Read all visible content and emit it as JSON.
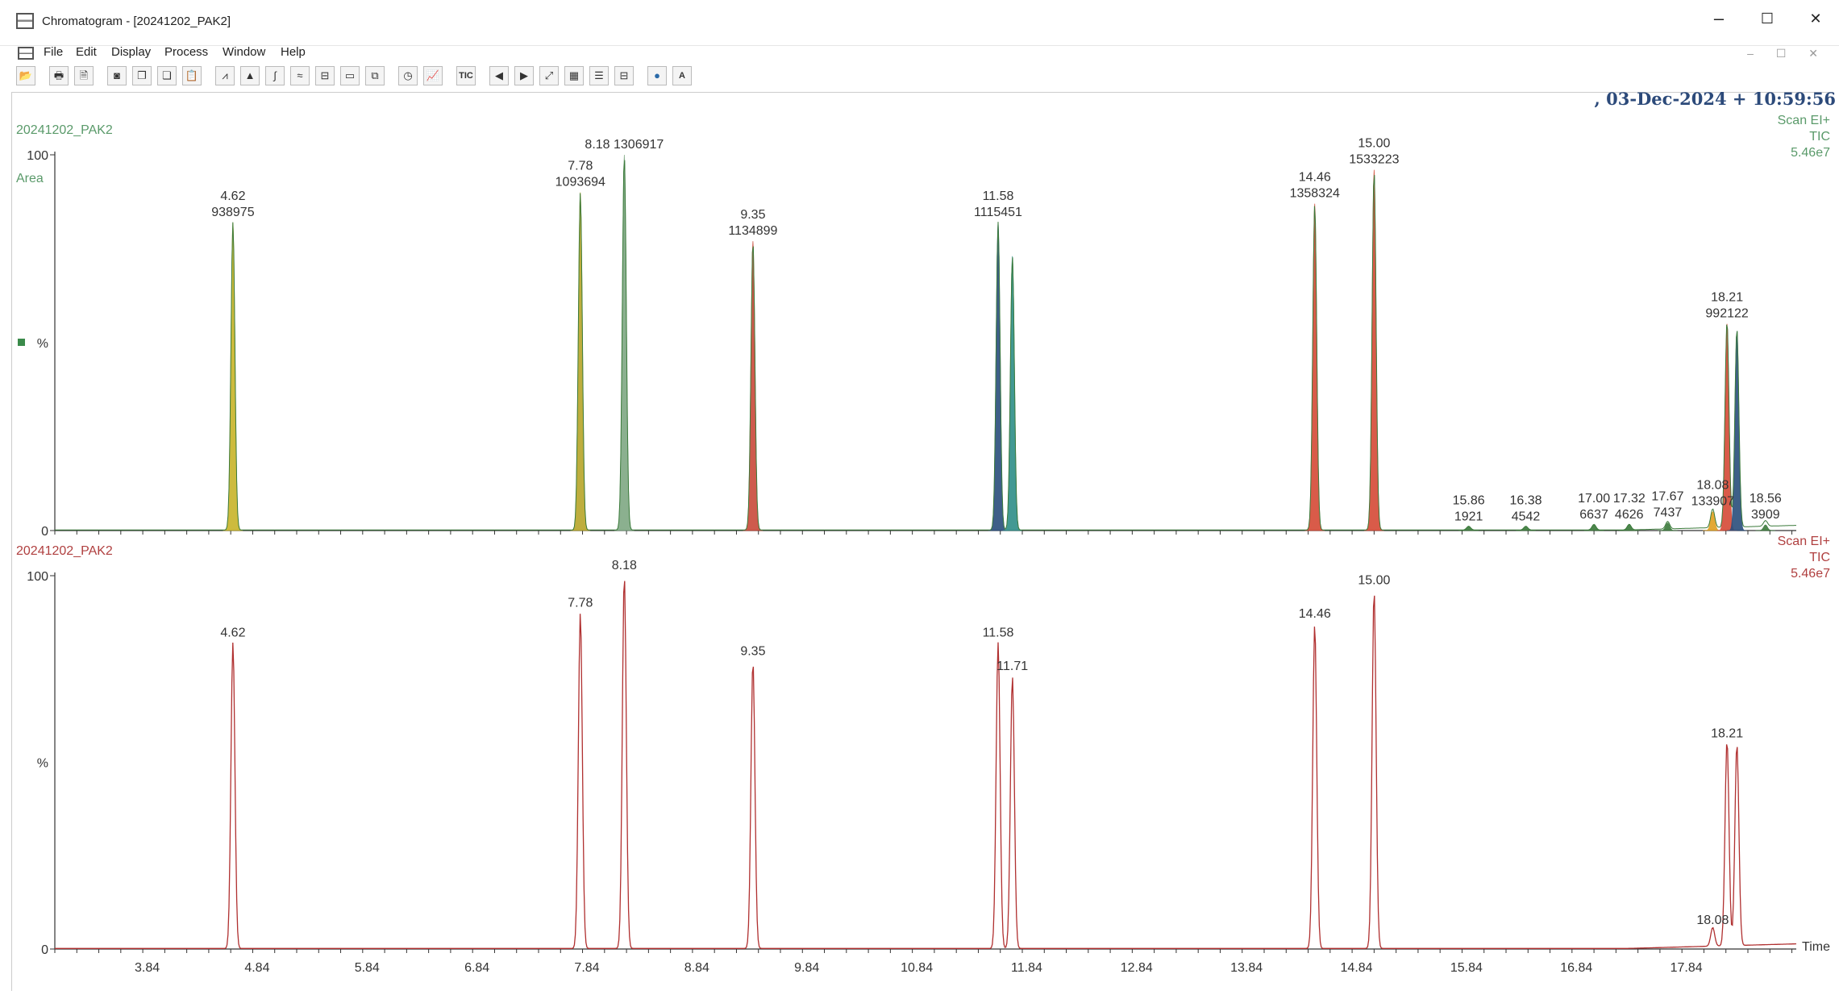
{
  "window": {
    "title": "Chromatogram - [20241202_PAK2]",
    "minimize": "–",
    "maximize": "☐",
    "close": "✕"
  },
  "menu": [
    "File",
    "Edit",
    "Display",
    "Process",
    "Window",
    "Help"
  ],
  "toolbar": {
    "buttons": [
      "open-icon",
      "print-icon",
      "print-preview-icon",
      "camera-icon",
      "copy-icon",
      "copy-list-icon",
      "paste-icon",
      "spectrum-icon",
      "peak-icon",
      "integrate-icon",
      "smooth-icon",
      "subtract-icon",
      "window-icon",
      "overlay-icon",
      "timer-icon",
      "chart-icon",
      "TIC",
      "left-arrow-icon",
      "right-arrow-icon",
      "zoom-fit-icon",
      "grid-icon",
      "stack-icon",
      "split-icon",
      "globe-icon",
      "A"
    ]
  },
  "header": {
    "datetime": "03-Dec-2024 + 10:59:56"
  },
  "chart_data": [
    {
      "type": "line",
      "name": "upper-trace-area",
      "sample": "20241202_PAK2",
      "mode": "Area",
      "info": [
        "Scan EI+",
        "TIC",
        "5.46e7"
      ],
      "ylabel": "%",
      "ylim": [
        0,
        100
      ],
      "xlim": [
        3.0,
        18.84
      ],
      "yticks": [
        "100",
        "%",
        "0"
      ],
      "peaks": [
        {
          "rt": 4.62,
          "height": 82,
          "color": "#c8b42a",
          "label": [
            "4.62",
            "938975"
          ]
        },
        {
          "rt": 7.78,
          "height": 90,
          "color": "#b8a62a",
          "label": [
            "7.78",
            "1093694"
          ]
        },
        {
          "rt": 8.18,
          "height": 100,
          "color": "#7fa883",
          "label": [
            "8.18 1306917"
          ]
        },
        {
          "rt": 9.35,
          "height": 77,
          "color": "#c94a3a",
          "label": [
            "9.35",
            "1134899"
          ]
        },
        {
          "rt": 11.58,
          "height": 82,
          "color": "#2a4e7c",
          "label": [
            "11.58",
            "1115451"
          ]
        },
        {
          "rt": 11.71,
          "height": 73,
          "color": "#2e8f88",
          "label": []
        },
        {
          "rt": 14.46,
          "height": 87,
          "color": "#d54a36",
          "label": [
            "14.46",
            "1358324"
          ]
        },
        {
          "rt": 15.0,
          "height": 96,
          "color": "#d54a36",
          "label": [
            "15.00",
            "1533223"
          ]
        },
        {
          "rt": 15.86,
          "height": 1,
          "color": "#3a7a3a",
          "label": [
            "15.86",
            "1921"
          ]
        },
        {
          "rt": 16.38,
          "height": 1,
          "color": "#3a7a3a",
          "label": [
            "16.38",
            "4542"
          ]
        },
        {
          "rt": 17.0,
          "height": 1.5,
          "color": "#3a7a3a",
          "label": [
            "17.00",
            "6637"
          ]
        },
        {
          "rt": 17.32,
          "height": 1.5,
          "color": "#3a7a3a",
          "label": [
            "17.32",
            "4626"
          ]
        },
        {
          "rt": 17.67,
          "height": 2,
          "color": "#3a7a3a",
          "label": [
            "17.67",
            "7437"
          ]
        },
        {
          "rt": 18.08,
          "height": 5,
          "color": "#e0a020",
          "label": [
            "18.08",
            "133907"
          ]
        },
        {
          "rt": 18.21,
          "height": 55,
          "color": "#d54a36",
          "label": [
            "18.21",
            "992122"
          ]
        },
        {
          "rt": 18.3,
          "height": 53,
          "color": "#2a4e7c",
          "label": []
        },
        {
          "rt": 18.56,
          "height": 1.5,
          "color": "#3a7a3a",
          "label": [
            "18.56",
            "3909"
          ]
        }
      ]
    },
    {
      "type": "line",
      "name": "lower-trace-tic",
      "sample": "20241202_PAK2",
      "info": [
        "Scan EI+",
        "TIC",
        "5.46e7"
      ],
      "ylabel": "%",
      "xlabel": "Time",
      "ylim": [
        0,
        100
      ],
      "xlim": [
        3.0,
        18.84
      ],
      "yticks": [
        "100",
        "%",
        "0"
      ],
      "xticks": [
        "3.84",
        "4.84",
        "5.84",
        "6.84",
        "7.84",
        "8.84",
        "9.84",
        "10.84",
        "11.84",
        "12.84",
        "13.84",
        "14.84",
        "15.84",
        "16.84",
        "17.84"
      ],
      "peaks": [
        {
          "rt": 4.62,
          "height": 82,
          "label": "4.62"
        },
        {
          "rt": 7.78,
          "height": 90,
          "label": "7.78"
        },
        {
          "rt": 8.18,
          "height": 100,
          "label": "8.18"
        },
        {
          "rt": 9.35,
          "height": 77,
          "label": "9.35"
        },
        {
          "rt": 11.58,
          "height": 82,
          "label": "11.58"
        },
        {
          "rt": 11.71,
          "height": 73,
          "label": "11.71"
        },
        {
          "rt": 14.46,
          "height": 87,
          "label": "14.46"
        },
        {
          "rt": 15.0,
          "height": 96,
          "label": "15.00"
        },
        {
          "rt": 18.08,
          "height": 5,
          "label": "18.08"
        },
        {
          "rt": 18.21,
          "height": 55,
          "label": "18.21"
        },
        {
          "rt": 18.3,
          "height": 54,
          "label": ""
        }
      ]
    }
  ]
}
